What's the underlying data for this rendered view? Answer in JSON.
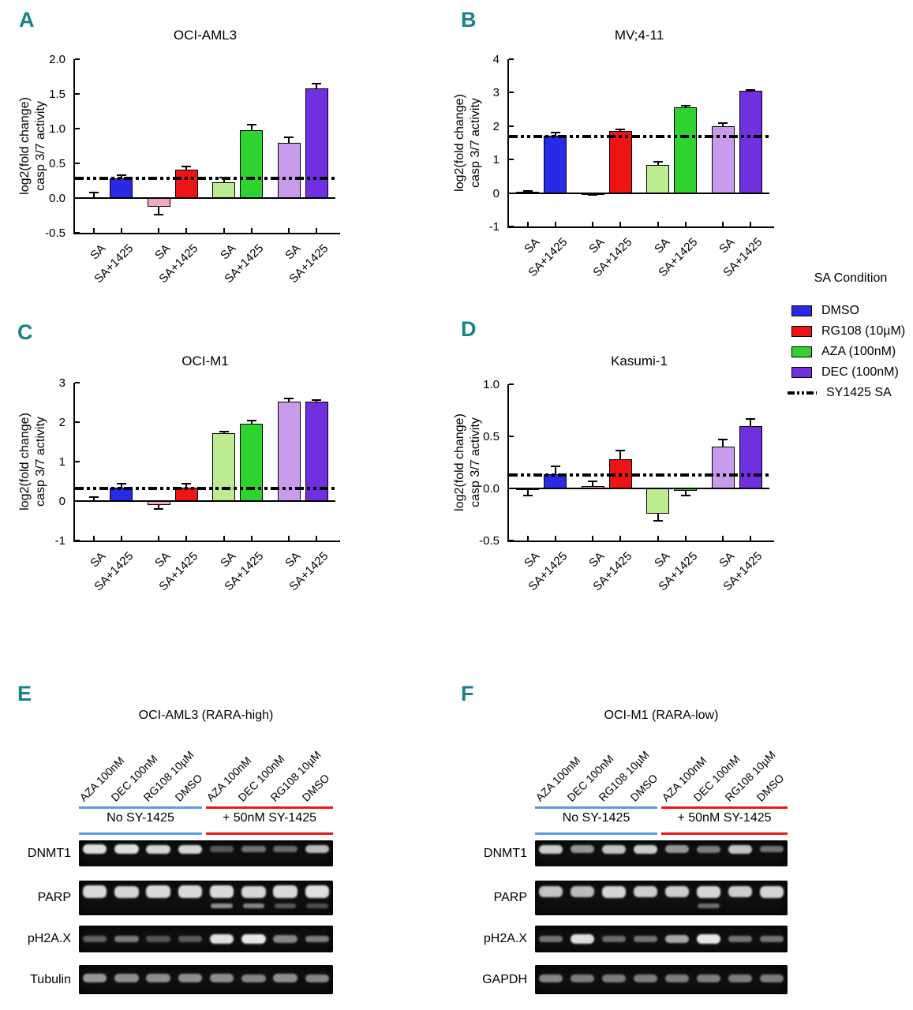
{
  "colors": {
    "panel_letter": "#19818A",
    "white": "#FFFFFF",
    "blue": "#2A2AE6",
    "pink": "#F7A6C8",
    "red": "#EC1414",
    "ltgreen": "#BCEB92",
    "green": "#2FD32F",
    "ltpurple": "#C89BEC",
    "purple": "#7130DF",
    "blot_blue": "#5B9BE8",
    "blot_red": "#EC1414",
    "dash_line": "#000000"
  },
  "legend": {
    "title": "SA Condition",
    "items": [
      {
        "label": "DMSO",
        "swatch": "blue"
      },
      {
        "label": "RG108 (10µM)",
        "swatch": "red"
      },
      {
        "label": "AZA (100nM)",
        "swatch": "green"
      },
      {
        "label": "DEC (100nM)",
        "swatch": "purple"
      },
      {
        "label": "SY1425 SA",
        "swatch": "dashline"
      }
    ]
  },
  "chart_data": [
    {
      "panel": "A",
      "type": "bar",
      "title": "OCI-AML3",
      "ylabel_lines": [
        "log2(fold change)",
        "casp 3/7 activity"
      ],
      "ylim": [
        -0.5,
        2.0
      ],
      "yticks": [
        {
          "v": 2.0,
          "label": "2.0"
        },
        {
          "v": 1.5,
          "label": "1.5"
        },
        {
          "v": 1.0,
          "label": "1.0"
        },
        {
          "v": 0.5,
          "label": "0.5"
        },
        {
          "v": 0.0,
          "label": "0.0"
        },
        {
          "v": -0.5,
          "label": "-0.5"
        }
      ],
      "dashed_line": {
        "value": 0.28,
        "label": "SY1425 SA"
      },
      "groups": [
        "DMSO",
        "RG108 (10µM)",
        "AZA (100nM)",
        "DEC (100nM)"
      ],
      "bars": [
        {
          "x": "SA",
          "condition": "DMSO",
          "value": 0.01,
          "error": 0.07,
          "fill": "white"
        },
        {
          "x": "SA+1425",
          "condition": "DMSO",
          "value": 0.28,
          "error": 0.05,
          "fill": "blue"
        },
        {
          "x": "SA",
          "condition": "RG108",
          "value": -0.12,
          "error": 0.12,
          "fill": "pink"
        },
        {
          "x": "SA+1425",
          "condition": "RG108",
          "value": 0.41,
          "error": 0.05,
          "fill": "red"
        },
        {
          "x": "SA",
          "condition": "AZA",
          "value": 0.23,
          "error": 0.07,
          "fill": "ltgreen"
        },
        {
          "x": "SA+1425",
          "condition": "AZA",
          "value": 0.98,
          "error": 0.08,
          "fill": "green"
        },
        {
          "x": "SA",
          "condition": "DEC",
          "value": 0.79,
          "error": 0.09,
          "fill": "ltpurple"
        },
        {
          "x": "SA+1425",
          "condition": "DEC",
          "value": 1.58,
          "error": 0.07,
          "fill": "purple"
        }
      ]
    },
    {
      "panel": "B",
      "type": "bar",
      "title": "MV;4-11",
      "ylabel_lines": [
        "log2(fold change)",
        "casp 3/7 activity"
      ],
      "ylim": [
        -1,
        4
      ],
      "yticks": [
        {
          "v": 4,
          "label": "4"
        },
        {
          "v": 3,
          "label": "3"
        },
        {
          "v": 2,
          "label": "2"
        },
        {
          "v": 1,
          "label": "1"
        },
        {
          "v": 0,
          "label": "0"
        },
        {
          "v": -1,
          "label": "-1"
        }
      ],
      "dashed_line": {
        "value": 1.7,
        "label": "SY1425 SA"
      },
      "groups": [
        "DMSO",
        "RG108 (10µM)",
        "AZA (100nM)",
        "DEC (100nM)"
      ],
      "bars": [
        {
          "x": "SA",
          "condition": "DMSO",
          "value": 0.03,
          "error": 0.03,
          "fill": "white"
        },
        {
          "x": "SA+1425",
          "condition": "DMSO",
          "value": 1.72,
          "error": 0.08,
          "fill": "blue"
        },
        {
          "x": "SA",
          "condition": "RG108",
          "value": -0.04,
          "error": 0.02,
          "fill": "white"
        },
        {
          "x": "SA+1425",
          "condition": "RG108",
          "value": 1.85,
          "error": 0.04,
          "fill": "red"
        },
        {
          "x": "SA",
          "condition": "AZA",
          "value": 0.83,
          "error": 0.1,
          "fill": "ltgreen"
        },
        {
          "x": "SA+1425",
          "condition": "AZA",
          "value": 2.55,
          "error": 0.05,
          "fill": "green"
        },
        {
          "x": "SA",
          "condition": "DEC",
          "value": 2.0,
          "error": 0.09,
          "fill": "ltpurple"
        },
        {
          "x": "SA+1425",
          "condition": "DEC",
          "value": 3.05,
          "error": 0.03,
          "fill": "purple"
        }
      ]
    },
    {
      "panel": "C",
      "type": "bar",
      "title": "OCI-M1",
      "ylabel_lines": [
        "log2(fold change)",
        "casp 3/7 activity"
      ],
      "ylim": [
        -1,
        3
      ],
      "yticks": [
        {
          "v": 3,
          "label": "3"
        },
        {
          "v": 2,
          "label": "2"
        },
        {
          "v": 1,
          "label": "1"
        },
        {
          "v": 0,
          "label": "0"
        },
        {
          "v": -1,
          "label": "-1"
        }
      ],
      "dashed_line": {
        "value": 0.33,
        "label": "SY1425 SA"
      },
      "groups": [
        "DMSO",
        "RG108 (10µM)",
        "AZA (100nM)",
        "DEC (100nM)"
      ],
      "bars": [
        {
          "x": "SA",
          "condition": "DMSO",
          "value": 0.03,
          "error": 0.07,
          "fill": "white"
        },
        {
          "x": "SA+1425",
          "condition": "DMSO",
          "value": 0.35,
          "error": 0.1,
          "fill": "blue"
        },
        {
          "x": "SA",
          "condition": "RG108",
          "value": -0.1,
          "error": 0.1,
          "fill": "pink"
        },
        {
          "x": "SA+1425",
          "condition": "RG108",
          "value": 0.35,
          "error": 0.09,
          "fill": "red"
        },
        {
          "x": "SA",
          "condition": "AZA",
          "value": 1.72,
          "error": 0.04,
          "fill": "ltgreen"
        },
        {
          "x": "SA+1425",
          "condition": "AZA",
          "value": 1.97,
          "error": 0.07,
          "fill": "green"
        },
        {
          "x": "SA",
          "condition": "DEC",
          "value": 2.53,
          "error": 0.07,
          "fill": "ltpurple"
        },
        {
          "x": "SA+1425",
          "condition": "DEC",
          "value": 2.53,
          "error": 0.04,
          "fill": "purple"
        }
      ]
    },
    {
      "panel": "D",
      "type": "bar",
      "title": "Kasumi-1",
      "ylabel_lines": [
        "log2(fold change)",
        "casp 3/7 activity"
      ],
      "ylim": [
        -0.5,
        1.0
      ],
      "yticks": [
        {
          "v": 1.0,
          "label": "1.0"
        },
        {
          "v": 0.5,
          "label": "0.5"
        },
        {
          "v": 0.0,
          "label": "0.0"
        },
        {
          "v": -0.5,
          "label": "-0.5"
        }
      ],
      "dashed_line": {
        "value": 0.13,
        "label": "SY1425 SA"
      },
      "groups": [
        "DMSO",
        "RG108 (10µM)",
        "AZA (100nM)",
        "DEC (100nM)"
      ],
      "bars": [
        {
          "x": "SA",
          "condition": "DMSO",
          "value": -0.01,
          "error": 0.06,
          "fill": "white"
        },
        {
          "x": "SA+1425",
          "condition": "DMSO",
          "value": 0.14,
          "error": 0.07,
          "fill": "blue"
        },
        {
          "x": "SA",
          "condition": "RG108",
          "value": 0.02,
          "error": 0.05,
          "fill": "pink"
        },
        {
          "x": "SA+1425",
          "condition": "RG108",
          "value": 0.28,
          "error": 0.08,
          "fill": "red"
        },
        {
          "x": "SA",
          "condition": "AZA",
          "value": -0.24,
          "error": 0.07,
          "fill": "ltgreen"
        },
        {
          "x": "SA+1425",
          "condition": "AZA",
          "value": -0.02,
          "error": 0.05,
          "fill": "green"
        },
        {
          "x": "SA",
          "condition": "DEC",
          "value": 0.4,
          "error": 0.07,
          "fill": "ltpurple"
        },
        {
          "x": "SA+1425",
          "condition": "DEC",
          "value": 0.6,
          "error": 0.07,
          "fill": "purple"
        }
      ]
    }
  ],
  "blots": [
    {
      "panel": "E",
      "title": "OCI-AML3 (RARA-high)",
      "lane_labels": [
        "AZA 100nM",
        "DEC 100nM",
        "RG108 10µM",
        "DMSO",
        "AZA 100nM",
        "DEC 100nM",
        "RG108 10µM",
        "DMSO"
      ],
      "groups": [
        {
          "label": "No SY-1425",
          "color_key": "blot_blue"
        },
        {
          "label": "+ 50nM SY-1425",
          "color_key": "blot_red"
        }
      ],
      "rows": [
        {
          "label": "DNMT1",
          "bands": [
            0.95,
            0.95,
            0.9,
            0.9,
            0.2,
            0.35,
            0.3,
            0.75
          ]
        },
        {
          "label": "PARP",
          "bands": [
            0.92,
            0.9,
            0.92,
            0.92,
            0.92,
            0.9,
            0.92,
            0.95
          ],
          "cleaved_bands": [
            0,
            0,
            0,
            0,
            0.55,
            0.5,
            0.25,
            0.18
          ]
        },
        {
          "label": "pH2A.X",
          "bands": [
            0.25,
            0.4,
            0.18,
            0.2,
            0.95,
            1.0,
            0.45,
            0.4
          ]
        },
        {
          "label": "Tubulin",
          "bands": [
            0.55,
            0.5,
            0.5,
            0.5,
            0.5,
            0.45,
            0.5,
            0.45
          ]
        }
      ]
    },
    {
      "panel": "F",
      "title": "OCI-M1 (RARA-low)",
      "lane_labels": [
        "AZA 100nM",
        "DEC 100nM",
        "RG108 10µM",
        "DMSO",
        "AZA 100nM",
        "DEC 100nM",
        "RG108 10µM",
        "DMSO"
      ],
      "groups": [
        {
          "label": "No SY-1425",
          "color_key": "blot_blue"
        },
        {
          "label": "+ 50nM SY-1425",
          "color_key": "blot_red"
        }
      ],
      "rows": [
        {
          "label": "DNMT1",
          "bands": [
            0.85,
            0.55,
            0.8,
            0.85,
            0.55,
            0.4,
            0.8,
            0.35
          ]
        },
        {
          "label": "PARP",
          "bands": [
            0.8,
            0.75,
            0.9,
            0.85,
            0.85,
            0.9,
            0.85,
            0.9
          ],
          "cleaved_bands": [
            0,
            0,
            0,
            0,
            0,
            0.35,
            0,
            0
          ]
        },
        {
          "label": "pH2A.X",
          "bands": [
            0.35,
            0.95,
            0.3,
            0.35,
            0.65,
            1.0,
            0.35,
            0.35
          ]
        },
        {
          "label": "GAPDH",
          "bands": [
            0.45,
            0.4,
            0.4,
            0.4,
            0.4,
            0.4,
            0.4,
            0.4
          ]
        }
      ]
    }
  ]
}
